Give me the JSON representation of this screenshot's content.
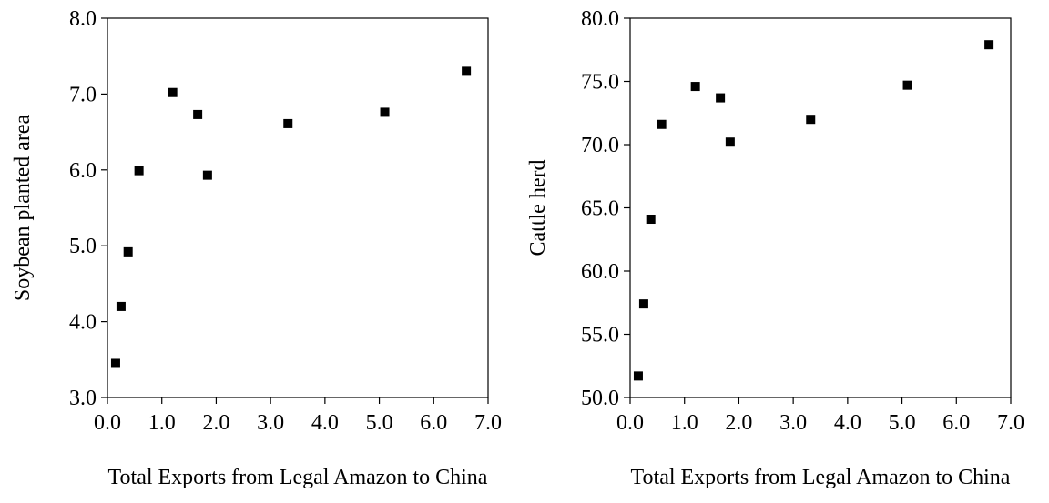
{
  "chart_data": [
    {
      "type": "scatter",
      "title": "",
      "xlabel": "Total Exports from Legal Amazon to China",
      "ylabel": "Soybean planted area",
      "xlim": [
        0.0,
        7.0
      ],
      "ylim": [
        3.0,
        8.0
      ],
      "x_ticks": [
        "0.0",
        "1.0",
        "2.0",
        "3.0",
        "4.0",
        "5.0",
        "6.0",
        "7.0"
      ],
      "y_ticks": [
        "3.0",
        "4.0",
        "5.0",
        "6.0",
        "7.0",
        "8.0"
      ],
      "points": [
        {
          "x": 0.15,
          "y": 3.45
        },
        {
          "x": 0.25,
          "y": 4.2
        },
        {
          "x": 0.38,
          "y": 4.92
        },
        {
          "x": 0.58,
          "y": 5.99
        },
        {
          "x": 1.2,
          "y": 7.02
        },
        {
          "x": 1.66,
          "y": 6.73
        },
        {
          "x": 1.84,
          "y": 5.93
        },
        {
          "x": 3.32,
          "y": 6.61
        },
        {
          "x": 5.1,
          "y": 6.76
        },
        {
          "x": 6.6,
          "y": 7.3
        }
      ],
      "marker_color": "#000000",
      "grid": false,
      "legend": "none"
    },
    {
      "type": "scatter",
      "title": "",
      "xlabel": "Total Exports from Legal Amazon to China",
      "ylabel": "Cattle herd",
      "xlim": [
        0.0,
        7.0
      ],
      "ylim": [
        50.0,
        80.0
      ],
      "x_ticks": [
        "0.0",
        "1.0",
        "2.0",
        "3.0",
        "4.0",
        "5.0",
        "6.0",
        "7.0"
      ],
      "y_ticks": [
        "50.0",
        "55.0",
        "60.0",
        "65.0",
        "70.0",
        "75.0",
        "80.0"
      ],
      "points": [
        {
          "x": 0.15,
          "y": 51.7
        },
        {
          "x": 0.25,
          "y": 57.4
        },
        {
          "x": 0.38,
          "y": 64.1
        },
        {
          "x": 0.58,
          "y": 71.6
        },
        {
          "x": 1.2,
          "y": 74.6
        },
        {
          "x": 1.66,
          "y": 73.7
        },
        {
          "x": 1.84,
          "y": 70.2
        },
        {
          "x": 3.32,
          "y": 72.0
        },
        {
          "x": 5.1,
          "y": 74.7
        },
        {
          "x": 6.6,
          "y": 77.9
        }
      ],
      "marker_color": "#000000",
      "grid": false,
      "legend": "none"
    }
  ]
}
